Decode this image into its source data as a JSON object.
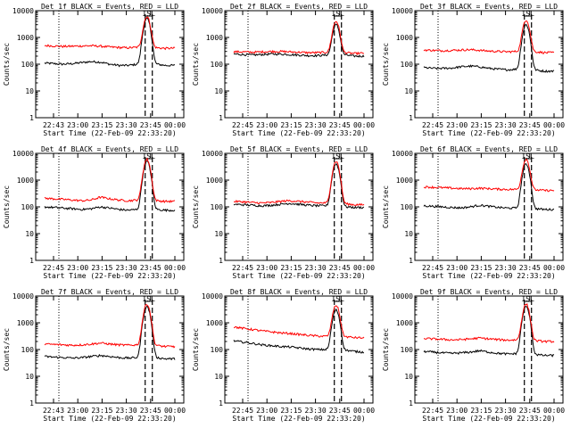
{
  "colors": {
    "events": "#000000",
    "lld": "#ff0000",
    "axes": "#000000",
    "background": "#ffffff"
  },
  "ylabel": "Counts/sec",
  "xlabel": "Start Time (22-Feb-09 22:33:20)",
  "y_ticks": [
    "10000",
    "1000",
    "100",
    "10",
    "1"
  ],
  "annotation": "ISL",
  "chart_data": [
    {
      "type": "line",
      "title": "Det 1f BLACK = Events, RED = LLD",
      "x_ticks": [
        "22:43",
        "23:00",
        "23:15",
        "23:30",
        "23:45",
        "00:00"
      ],
      "yscale": "log",
      "ylim": [
        1,
        10000
      ],
      "series": [
        {
          "name": "BLACK = Events",
          "profile": [
            110,
            105,
            100,
            105,
            115,
            125,
            120,
            100,
            90,
            90,
            100,
            5000,
            100,
            90,
            90
          ]
        },
        {
          "name": "RED = LLD",
          "profile": [
            500,
            480,
            460,
            470,
            480,
            490,
            470,
            440,
            420,
            410,
            430,
            6000,
            410,
            390,
            400
          ]
        }
      ],
      "dashed_markers": 2
    },
    {
      "type": "line",
      "title": "Det 2f BLACK = Events, RED = LLD",
      "x_ticks": [
        "22:45",
        "23:00",
        "23:15",
        "23:30",
        "23:45",
        "00:00"
      ],
      "yscale": "log",
      "ylim": [
        1,
        10000
      ],
      "series": [
        {
          "name": "BLACK = Events",
          "profile": [
            240,
            230,
            220,
            230,
            240,
            240,
            230,
            220,
            210,
            210,
            220,
            3000,
            220,
            200,
            200
          ]
        },
        {
          "name": "RED = LLD",
          "profile": [
            290,
            290,
            280,
            290,
            300,
            300,
            290,
            280,
            270,
            270,
            280,
            4000,
            270,
            250,
            260
          ]
        }
      ],
      "dashed_markers": 2
    },
    {
      "type": "line",
      "title": "Det 3f BLACK = Events, RED = LLD",
      "x_ticks": [
        "22:45",
        "23:00",
        "23:15",
        "23:30",
        "23:45",
        "00:00"
      ],
      "yscale": "log",
      "ylim": [
        1,
        10000
      ],
      "series": [
        {
          "name": "BLACK = Events",
          "profile": [
            75,
            70,
            70,
            72,
            80,
            85,
            80,
            70,
            65,
            62,
            65,
            3000,
            60,
            55,
            55
          ]
        },
        {
          "name": "RED = LLD",
          "profile": [
            340,
            330,
            320,
            330,
            340,
            350,
            330,
            310,
            300,
            290,
            300,
            4500,
            290,
            270,
            270
          ]
        }
      ],
      "dashed_markers": 2
    },
    {
      "type": "line",
      "title": "Det 4f BLACK = Events, RED = LLD",
      "x_ticks": [
        "22:45",
        "23:00",
        "23:15",
        "23:30",
        "23:45",
        "00:00"
      ],
      "yscale": "log",
      "ylim": [
        1,
        10000
      ],
      "series": [
        {
          "name": "BLACK = Events",
          "profile": [
            100,
            95,
            90,
            85,
            80,
            85,
            100,
            90,
            80,
            75,
            80,
            5000,
            80,
            75,
            75
          ]
        },
        {
          "name": "RED = LLD",
          "profile": [
            210,
            200,
            190,
            180,
            170,
            180,
            230,
            200,
            180,
            170,
            180,
            6000,
            170,
            160,
            160
          ]
        }
      ],
      "dashed_markers": 2
    },
    {
      "type": "line",
      "title": "Det 5f BLACK = Events, RED = LLD",
      "x_ticks": [
        "22:45",
        "23:00",
        "23:15",
        "23:30",
        "23:45",
        "00:00"
      ],
      "yscale": "log",
      "ylim": [
        1,
        10000
      ],
      "series": [
        {
          "name": "BLACK = Events",
          "profile": [
            125,
            120,
            115,
            110,
            115,
            125,
            135,
            125,
            115,
            110,
            110,
            4000,
            100,
            95,
            95
          ]
        },
        {
          "name": "RED = LLD",
          "profile": [
            160,
            155,
            145,
            140,
            145,
            160,
            170,
            160,
            150,
            140,
            140,
            5000,
            130,
            120,
            120
          ]
        }
      ],
      "dashed_markers": 2
    },
    {
      "type": "line",
      "title": "Det 6f BLACK = Events, RED = LLD",
      "x_ticks": [
        "22:45",
        "23:00",
        "23:15",
        "23:30",
        "23:45",
        "00:00"
      ],
      "yscale": "log",
      "ylim": [
        1,
        10000
      ],
      "series": [
        {
          "name": "BLACK = Events",
          "profile": [
            110,
            105,
            100,
            95,
            92,
            100,
            115,
            105,
            95,
            90,
            90,
            4000,
            85,
            80,
            80
          ]
        },
        {
          "name": "RED = LLD",
          "profile": [
            560,
            540,
            520,
            500,
            480,
            480,
            500,
            480,
            460,
            450,
            450,
            6000,
            430,
            410,
            410
          ]
        }
      ],
      "dashed_markers": 2
    },
    {
      "type": "line",
      "title": "Det 7f BLACK = Events, RED = LLD",
      "x_ticks": [
        "22:43",
        "23:00",
        "23:15",
        "23:30",
        "23:45",
        "00:00"
      ],
      "yscale": "log",
      "ylim": [
        1,
        10000
      ],
      "series": [
        {
          "name": "BLACK = Events",
          "profile": [
            55,
            52,
            50,
            48,
            50,
            55,
            60,
            55,
            50,
            48,
            50,
            4000,
            50,
            45,
            45
          ]
        },
        {
          "name": "RED = LLD",
          "profile": [
            160,
            155,
            150,
            145,
            150,
            160,
            175,
            160,
            150,
            145,
            150,
            5000,
            140,
            130,
            130
          ]
        }
      ],
      "dashed_markers": 2
    },
    {
      "type": "line",
      "title": "Det 8f BLACK = Events, RED = LLD",
      "x_ticks": [
        "22:45",
        "23:00",
        "23:15",
        "23:30",
        "23:45",
        "00:00"
      ],
      "yscale": "log",
      "ylim": [
        1,
        10000
      ],
      "series": [
        {
          "name": "BLACK = Events",
          "profile": [
            210,
            190,
            170,
            150,
            140,
            130,
            125,
            115,
            105,
            100,
            100,
            3000,
            95,
            85,
            80
          ]
        },
        {
          "name": "RED = LLD",
          "profile": [
            700,
            620,
            560,
            500,
            460,
            420,
            400,
            370,
            340,
            320,
            310,
            4500,
            300,
            280,
            270
          ]
        }
      ],
      "dashed_markers": 2
    },
    {
      "type": "line",
      "title": "Det 9f BLACK = Events, RED = LLD",
      "x_ticks": [
        "22:45",
        "23:00",
        "23:15",
        "23:30",
        "23:45",
        "00:00"
      ],
      "yscale": "log",
      "ylim": [
        1,
        10000
      ],
      "series": [
        {
          "name": "BLACK = Events",
          "profile": [
            85,
            80,
            75,
            72,
            75,
            80,
            90,
            80,
            72,
            68,
            70,
            4000,
            65,
            60,
            60
          ]
        },
        {
          "name": "RED = LLD",
          "profile": [
            260,
            250,
            240,
            230,
            235,
            250,
            270,
            250,
            235,
            225,
            230,
            5000,
            215,
            200,
            200
          ]
        }
      ],
      "dashed_markers": 2
    }
  ]
}
